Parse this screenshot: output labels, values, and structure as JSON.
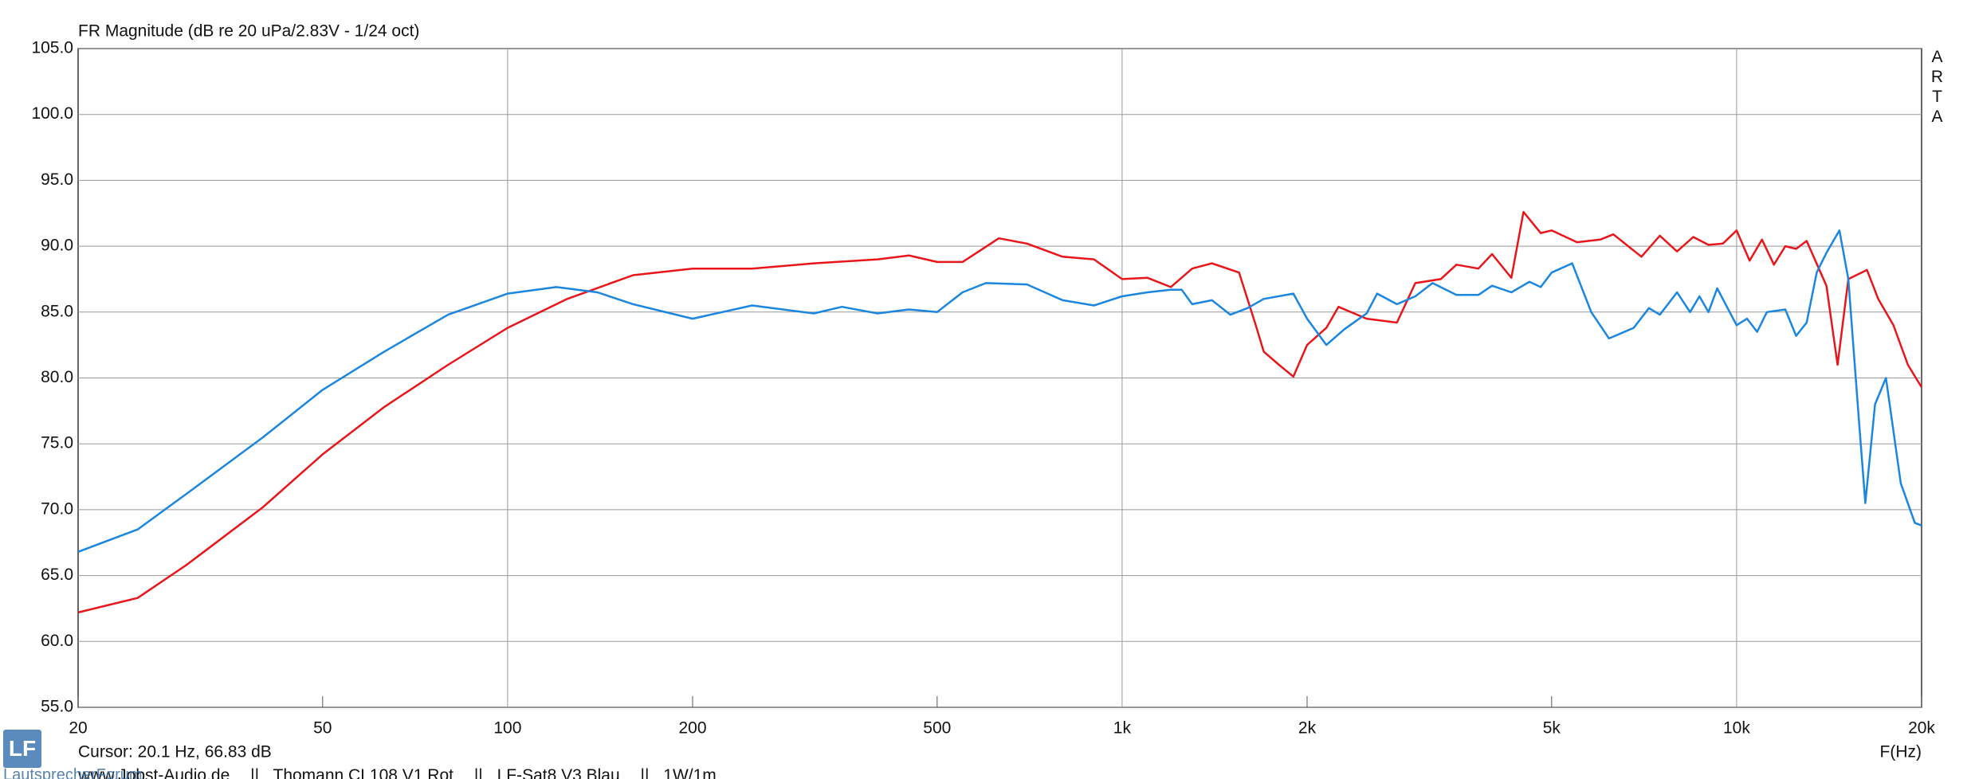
{
  "chart_data": {
    "type": "line",
    "title": "FR Magnitude (dB re 20 uPa/2.83V - 1/24 oct)",
    "side_label": "ARTA",
    "x_label": "F(Hz)",
    "cursor": "Cursor: 20.1 Hz, 66.83 dB",
    "footer": {
      "site": "www.Jobst-Audio.de",
      "separator": "||",
      "note": "1W/1m"
    },
    "logo": {
      "mark": "LF",
      "text": "LautsprecherForum"
    },
    "xscale": "log",
    "xlim": [
      20,
      20000
    ],
    "xticks": [
      20,
      50,
      100,
      200,
      500,
      {
        "value": 1000,
        "label": "1k"
      },
      {
        "value": 2000,
        "label": "2k"
      },
      {
        "value": 5000,
        "label": "5k"
      },
      {
        "value": 10000,
        "label": "10k"
      },
      {
        "value": 20000,
        "label": "20k"
      }
    ],
    "ylim": [
      55,
      105
    ],
    "yticks": [
      {
        "value": 55,
        "label": "55.0"
      },
      {
        "value": 60,
        "label": "60.0"
      },
      {
        "value": 65,
        "label": "65.0"
      },
      {
        "value": 70,
        "label": "70.0"
      },
      {
        "value": 75,
        "label": "75.0"
      },
      {
        "value": 80,
        "label": "80.0"
      },
      {
        "value": 85,
        "label": "85.0"
      },
      {
        "value": 90,
        "label": "90.0"
      },
      {
        "value": 95,
        "label": "95.0"
      },
      {
        "value": 100,
        "label": "100.0"
      },
      {
        "value": 105,
        "label": "105.0"
      }
    ],
    "grid": true,
    "series": [
      {
        "name": "Thomann CL108 V1 Rot",
        "color": "#e8161b",
        "x": [
          20,
          25,
          30,
          40,
          50,
          63,
          80,
          100,
          125,
          160,
          200,
          250,
          315,
          400,
          450,
          500,
          550,
          630,
          700,
          800,
          900,
          1000,
          1100,
          1200,
          1300,
          1400,
          1550,
          1650,
          1700,
          1800,
          1900,
          2000,
          2150,
          2250,
          2500,
          2800,
          3000,
          3300,
          3500,
          3800,
          4000,
          4300,
          4500,
          4800,
          5000,
          5500,
          6000,
          6300,
          7000,
          7500,
          8000,
          8500,
          9000,
          9500,
          10000,
          10500,
          11000,
          11500,
          12000,
          12500,
          13000,
          14000,
          14600,
          15200,
          16300,
          17000,
          18000,
          19000,
          20000
        ],
        "values": [
          62.2,
          63.3,
          65.8,
          70.2,
          74.2,
          77.8,
          81.0,
          83.8,
          86.0,
          87.8,
          88.3,
          88.3,
          88.7,
          89.0,
          89.3,
          88.8,
          88.8,
          90.6,
          90.2,
          89.2,
          89.0,
          87.5,
          87.6,
          86.9,
          88.3,
          88.7,
          88.0,
          84.0,
          82.0,
          81.0,
          80.1,
          82.5,
          83.8,
          85.4,
          84.5,
          84.2,
          87.2,
          87.5,
          88.6,
          88.3,
          89.4,
          87.6,
          92.6,
          91.0,
          91.2,
          90.3,
          90.5,
          90.9,
          89.2,
          90.8,
          89.6,
          90.7,
          90.1,
          90.2,
          91.2,
          88.9,
          90.5,
          88.6,
          90.0,
          89.8,
          90.4,
          87.0,
          81.0,
          87.5,
          88.2,
          86.0,
          84.0,
          81.0,
          79.3
        ]
      },
      {
        "name": "LF-Sat8 V3 Blau",
        "color": "#1a86e0",
        "x": [
          20,
          25,
          30,
          40,
          50,
          63,
          80,
          100,
          120,
          140,
          160,
          200,
          250,
          315,
          350,
          400,
          450,
          500,
          550,
          600,
          700,
          800,
          900,
          1000,
          1100,
          1200,
          1250,
          1300,
          1400,
          1500,
          1600,
          1700,
          1900,
          2000,
          2150,
          2300,
          2500,
          2600,
          2800,
          3000,
          3200,
          3500,
          3800,
          4000,
          4300,
          4600,
          4800,
          5000,
          5400,
          5800,
          6200,
          6800,
          7200,
          7500,
          8000,
          8400,
          8700,
          9000,
          9300,
          10000,
          10400,
          10800,
          11200,
          12000,
          12500,
          13000,
          13500,
          14000,
          14700,
          15200,
          15800,
          16200,
          16800,
          17500,
          18500,
          19500,
          20000
        ],
        "values": [
          66.8,
          68.5,
          71.2,
          75.5,
          79.1,
          82.0,
          84.8,
          86.4,
          86.9,
          86.5,
          85.6,
          84.5,
          85.5,
          84.9,
          85.4,
          84.9,
          85.2,
          85.0,
          86.5,
          87.2,
          87.1,
          85.9,
          85.5,
          86.2,
          86.5,
          86.7,
          86.7,
          85.6,
          85.9,
          84.8,
          85.3,
          86.0,
          86.4,
          84.5,
          82.5,
          83.7,
          84.9,
          86.4,
          85.6,
          86.2,
          87.2,
          86.3,
          86.3,
          87.0,
          86.5,
          87.3,
          86.9,
          88.0,
          88.7,
          85.0,
          83.0,
          83.8,
          85.3,
          84.8,
          86.5,
          85.0,
          86.2,
          85.0,
          86.8,
          84.0,
          84.5,
          83.5,
          85.0,
          85.2,
          83.2,
          84.2,
          88.0,
          89.5,
          91.2,
          87.5,
          77.0,
          70.5,
          78.0,
          80.0,
          72.0,
          69.0,
          68.8
        ]
      }
    ]
  }
}
